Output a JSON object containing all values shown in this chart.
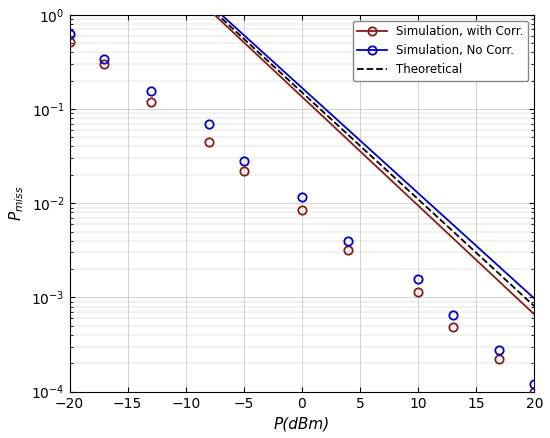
{
  "title": "",
  "xlabel": "P(dBm)",
  "ylabel": "$P_{miss}$",
  "xlim": [
    -20,
    20
  ],
  "ylim": [
    0.0001,
    1.0
  ],
  "x_ticks": [
    -20,
    -15,
    -10,
    -5,
    0,
    5,
    10,
    15,
    20
  ],
  "legend": [
    "Simulation, with Corr.",
    "Simulation, No Corr.",
    "Theoretical"
  ],
  "sim_corr_color": "#8B1A1A",
  "sim_nocorr_color": "#0000CC",
  "theoretical_color": "#000000",
  "marker_x_corr": [
    -20,
    -17,
    -13,
    -8,
    -5,
    0,
    4,
    10,
    13,
    17,
    20
  ],
  "sim_corr_y": [
    0.52,
    0.3,
    0.12,
    0.045,
    0.022,
    0.0085,
    0.0032,
    0.00115,
    0.00048,
    0.00022,
    0.0001
  ],
  "marker_x_nocorr": [
    -20,
    -17,
    -13,
    -8,
    -5,
    0,
    4,
    10,
    13,
    17,
    20
  ],
  "sim_nocorr_y": [
    0.62,
    0.335,
    0.155,
    0.07,
    0.028,
    0.0115,
    0.004,
    0.00155,
    0.00065,
    0.00028,
    0.00012
  ],
  "sim_corr_slope": -0.1155,
  "sim_corr_intercept": -0.87,
  "sim_nocorr_slope": -0.1118,
  "sim_nocorr_intercept": -0.775,
  "theory_slope": -0.1135,
  "theory_intercept": -0.823,
  "grid_color": "#c0c0c0",
  "background_color": "#ffffff"
}
